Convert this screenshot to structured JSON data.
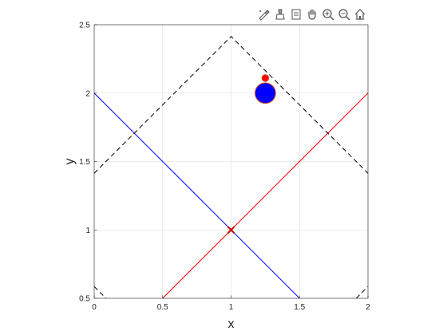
{
  "toolbar": {
    "icons": [
      "brush-data-icon",
      "clean-brush-icon",
      "data-cursor-icon",
      "pan-hand-icon",
      "zoom-in-icon",
      "zoom-out-icon",
      "home-icon"
    ]
  },
  "colors": {
    "blue": "#0000ff",
    "red": "#ff0000",
    "black": "#000000",
    "dark_red_marker": "#cc0000",
    "circle_edge": "#d95319"
  },
  "chart_data": {
    "type": "line",
    "xlabel": "x",
    "ylabel": "y",
    "xlim": [
      0,
      2
    ],
    "ylim": [
      0.5,
      2.5
    ],
    "grid": true,
    "x_ticks": [
      0,
      0.5,
      1,
      1.5,
      2
    ],
    "x_tick_labels": [
      "0",
      "0.5",
      "1",
      "1.5",
      "2"
    ],
    "y_ticks": [
      0.5,
      1,
      1.5,
      2,
      2.5
    ],
    "y_tick_labels": [
      "0.5",
      "1",
      "1.5",
      "2",
      "2.5"
    ],
    "series": [
      {
        "style": "solid",
        "color": "#0000ff",
        "x": [
          0,
          1.5
        ],
        "y": [
          2,
          0.5
        ]
      },
      {
        "style": "solid",
        "color": "#ff0000",
        "x": [
          0.5,
          2
        ],
        "y": [
          0.5,
          2
        ]
      },
      {
        "style": "dashed",
        "color": "#000000",
        "x": [
          0,
          1,
          2
        ],
        "y": [
          1.414,
          2.414,
          1.414
        ]
      },
      {
        "style": "dashed",
        "color": "#000000",
        "x": [
          0,
          0.086
        ],
        "y": [
          0.586,
          0.5
        ]
      },
      {
        "style": "dashed",
        "color": "#000000",
        "x": [
          1.914,
          2
        ],
        "y": [
          0.5,
          0.586
        ]
      }
    ],
    "markers": [
      {
        "shape": "x",
        "color": "#cc0000",
        "x": 1,
        "y": 1
      },
      {
        "shape": "circle",
        "color": "#0000ff",
        "x": 1.25,
        "y": 2,
        "radius": 0.075
      },
      {
        "shape": "circle",
        "color": "#ff0000",
        "x": 1.25,
        "y": 2.11,
        "radius": 0.025
      }
    ]
  }
}
